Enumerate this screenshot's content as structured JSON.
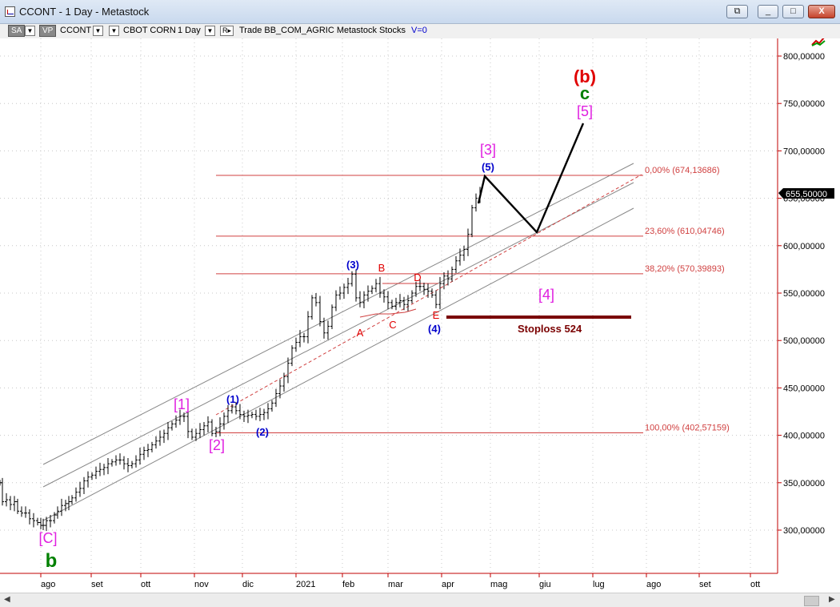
{
  "window": {
    "title": "CCONT - 1 Day - Metastock",
    "buttons": {
      "restore_all": "⧉",
      "minimize": "_",
      "maximize": "□",
      "close": "X"
    }
  },
  "toolbar": {
    "sa": "SA",
    "vp": "VP",
    "symbol": "CCONT",
    "security": "CBOT CORN",
    "period": "1 Day",
    "rest": "Trade BB_COM_AGRIC Metastock Stocks",
    "v": "V=0"
  },
  "chart_data": {
    "type": "candlestick",
    "x_tick_labels": [
      "ago",
      "set",
      "ott",
      "nov",
      "dic",
      "2021",
      "feb",
      "mar",
      "apr",
      "mag",
      "giu",
      "lug",
      "ago",
      "set",
      "ott"
    ],
    "y_tick_labels": [
      "300,00000",
      "350,00000",
      "400,00000",
      "450,00000",
      "500,00000",
      "550,00000",
      "600,00000",
      "650,00000",
      "700,00000",
      "750,00000",
      "800,00000"
    ],
    "ylim": [
      254,
      834
    ],
    "current_price": "655,50000",
    "series_close": [
      {
        "t": 0,
        "v": 350
      },
      {
        "t": 3,
        "v": 330
      },
      {
        "t": 8,
        "v": 332
      },
      {
        "t": 13,
        "v": 327
      },
      {
        "t": 18,
        "v": 330
      },
      {
        "t": 22,
        "v": 320
      },
      {
        "t": 27,
        "v": 318
      },
      {
        "t": 32,
        "v": 318
      },
      {
        "t": 37,
        "v": 312
      },
      {
        "t": 42,
        "v": 310
      },
      {
        "t": 47,
        "v": 308
      },
      {
        "t": 51,
        "v": 305
      },
      {
        "t": 54,
        "v": 305
      },
      {
        "t": 58,
        "v": 310
      },
      {
        "t": 63,
        "v": 310
      },
      {
        "t": 68,
        "v": 316
      },
      {
        "t": 72,
        "v": 320
      },
      {
        "t": 77,
        "v": 326
      },
      {
        "t": 82,
        "v": 328
      },
      {
        "t": 86,
        "v": 330
      },
      {
        "t": 90,
        "v": 334
      },
      {
        "t": 95,
        "v": 340
      },
      {
        "t": 100,
        "v": 344
      },
      {
        "t": 105,
        "v": 352
      },
      {
        "t": 110,
        "v": 356
      },
      {
        "t": 115,
        "v": 358
      },
      {
        "t": 120,
        "v": 362
      },
      {
        "t": 125,
        "v": 364
      },
      {
        "t": 130,
        "v": 366
      },
      {
        "t": 135,
        "v": 370
      },
      {
        "t": 140,
        "v": 372
      },
      {
        "t": 145,
        "v": 374
      },
      {
        "t": 150,
        "v": 374
      },
      {
        "t": 155,
        "v": 370
      },
      {
        "t": 160,
        "v": 368
      },
      {
        "t": 165,
        "v": 370
      },
      {
        "t": 170,
        "v": 374
      },
      {
        "t": 175,
        "v": 380
      },
      {
        "t": 180,
        "v": 384
      },
      {
        "t": 185,
        "v": 385
      },
      {
        "t": 190,
        "v": 390
      },
      {
        "t": 195,
        "v": 394
      },
      {
        "t": 200,
        "v": 398
      },
      {
        "t": 205,
        "v": 402
      },
      {
        "t": 210,
        "v": 408
      },
      {
        "t": 215,
        "v": 412
      },
      {
        "t": 220,
        "v": 416
      },
      {
        "t": 225,
        "v": 420
      },
      {
        "t": 230,
        "v": 420
      },
      {
        "t": 235,
        "v": 404
      },
      {
        "t": 240,
        "v": 398
      },
      {
        "t": 245,
        "v": 402
      },
      {
        "t": 250,
        "v": 406
      },
      {
        "t": 255,
        "v": 410
      },
      {
        "t": 260,
        "v": 414
      },
      {
        "t": 265,
        "v": 402
      },
      {
        "t": 270,
        "v": 404
      },
      {
        "t": 275,
        "v": 412
      },
      {
        "t": 280,
        "v": 420
      },
      {
        "t": 285,
        "v": 426
      },
      {
        "t": 290,
        "v": 430
      },
      {
        "t": 295,
        "v": 426
      },
      {
        "t": 300,
        "v": 422
      },
      {
        "t": 305,
        "v": 420
      },
      {
        "t": 310,
        "v": 421
      },
      {
        "t": 315,
        "v": 422
      },
      {
        "t": 320,
        "v": 420
      },
      {
        "t": 325,
        "v": 422
      },
      {
        "t": 330,
        "v": 424
      },
      {
        "t": 335,
        "v": 428
      },
      {
        "t": 340,
        "v": 434
      },
      {
        "t": 345,
        "v": 444
      },
      {
        "t": 350,
        "v": 452
      },
      {
        "t": 355,
        "v": 462
      },
      {
        "t": 360,
        "v": 476
      },
      {
        "t": 365,
        "v": 492
      },
      {
        "t": 370,
        "v": 498
      },
      {
        "t": 375,
        "v": 504
      },
      {
        "t": 380,
        "v": 504
      },
      {
        "t": 385,
        "v": 525
      },
      {
        "t": 390,
        "v": 545
      },
      {
        "t": 395,
        "v": 540
      },
      {
        "t": 400,
        "v": 520
      },
      {
        "t": 405,
        "v": 508
      },
      {
        "t": 410,
        "v": 515
      },
      {
        "t": 415,
        "v": 535
      },
      {
        "t": 420,
        "v": 548
      },
      {
        "t": 425,
        "v": 550
      },
      {
        "t": 430,
        "v": 556
      },
      {
        "t": 435,
        "v": 560
      },
      {
        "t": 440,
        "v": 570
      },
      {
        "t": 445,
        "v": 545
      },
      {
        "t": 450,
        "v": 540
      },
      {
        "t": 455,
        "v": 548
      },
      {
        "t": 460,
        "v": 552
      },
      {
        "t": 465,
        "v": 555
      },
      {
        "t": 470,
        "v": 560
      },
      {
        "t": 475,
        "v": 550
      },
      {
        "t": 480,
        "v": 546
      },
      {
        "t": 485,
        "v": 540
      },
      {
        "t": 490,
        "v": 536
      },
      {
        "t": 495,
        "v": 540
      },
      {
        "t": 500,
        "v": 542
      },
      {
        "t": 505,
        "v": 538
      },
      {
        "t": 510,
        "v": 542
      },
      {
        "t": 515,
        "v": 550
      },
      {
        "t": 520,
        "v": 557
      },
      {
        "t": 525,
        "v": 557
      },
      {
        "t": 530,
        "v": 554
      },
      {
        "t": 535,
        "v": 552
      },
      {
        "t": 540,
        "v": 548
      },
      {
        "t": 545,
        "v": 538
      },
      {
        "t": 550,
        "v": 560
      },
      {
        "t": 555,
        "v": 568
      },
      {
        "t": 560,
        "v": 565
      },
      {
        "t": 565,
        "v": 575
      },
      {
        "t": 570,
        "v": 584
      },
      {
        "t": 575,
        "v": 590
      },
      {
        "t": 580,
        "v": 596
      },
      {
        "t": 585,
        "v": 612
      },
      {
        "t": 590,
        "v": 640
      },
      {
        "t": 595,
        "v": 650
      },
      {
        "t": 600,
        "v": 655
      }
    ],
    "fib_levels": [
      {
        "label": "0,00% (674,13686)",
        "price": 674.13686
      },
      {
        "label": "23,60% (610,04746)",
        "price": 610.04746
      },
      {
        "label": "38,20% (570,39893)",
        "price": 570.39893
      },
      {
        "label": "100,00% (402,57159)",
        "price": 402.57159
      }
    ],
    "stoploss": {
      "label": "Stoploss 524",
      "price": 524
    },
    "wave_labels": [
      {
        "text": "(b)",
        "color": "#e00000"
      },
      {
        "text": "c",
        "color": "#008000"
      },
      {
        "text": "[5]",
        "color": "#e020e0"
      },
      {
        "text": "[3]",
        "color": "#e020e0"
      },
      {
        "text": "(5)",
        "color": "#0000cc"
      },
      {
        "text": "[4]",
        "color": "#e020e0"
      },
      {
        "text": "(3)",
        "color": "#0000cc"
      },
      {
        "text": "B",
        "color": "#e00000"
      },
      {
        "text": "D",
        "color": "#e00000"
      },
      {
        "text": "A",
        "color": "#e00000"
      },
      {
        "text": "C",
        "color": "#e00000"
      },
      {
        "text": "E",
        "color": "#e00000"
      },
      {
        "text": "(4)",
        "color": "#0000cc"
      },
      {
        "text": "[1]",
        "color": "#e020e0"
      },
      {
        "text": "(1)",
        "color": "#0000cc"
      },
      {
        "text": "[2]",
        "color": "#e020e0"
      },
      {
        "text": "(2)",
        "color": "#0000cc"
      },
      {
        "text": "[C]",
        "color": "#e020e0"
      },
      {
        "text": "b",
        "color": "#008000"
      }
    ],
    "colors": {
      "fib": "#d04040",
      "axis": "#c00000",
      "price": "#000000",
      "stoploss": "#7a0000"
    }
  }
}
